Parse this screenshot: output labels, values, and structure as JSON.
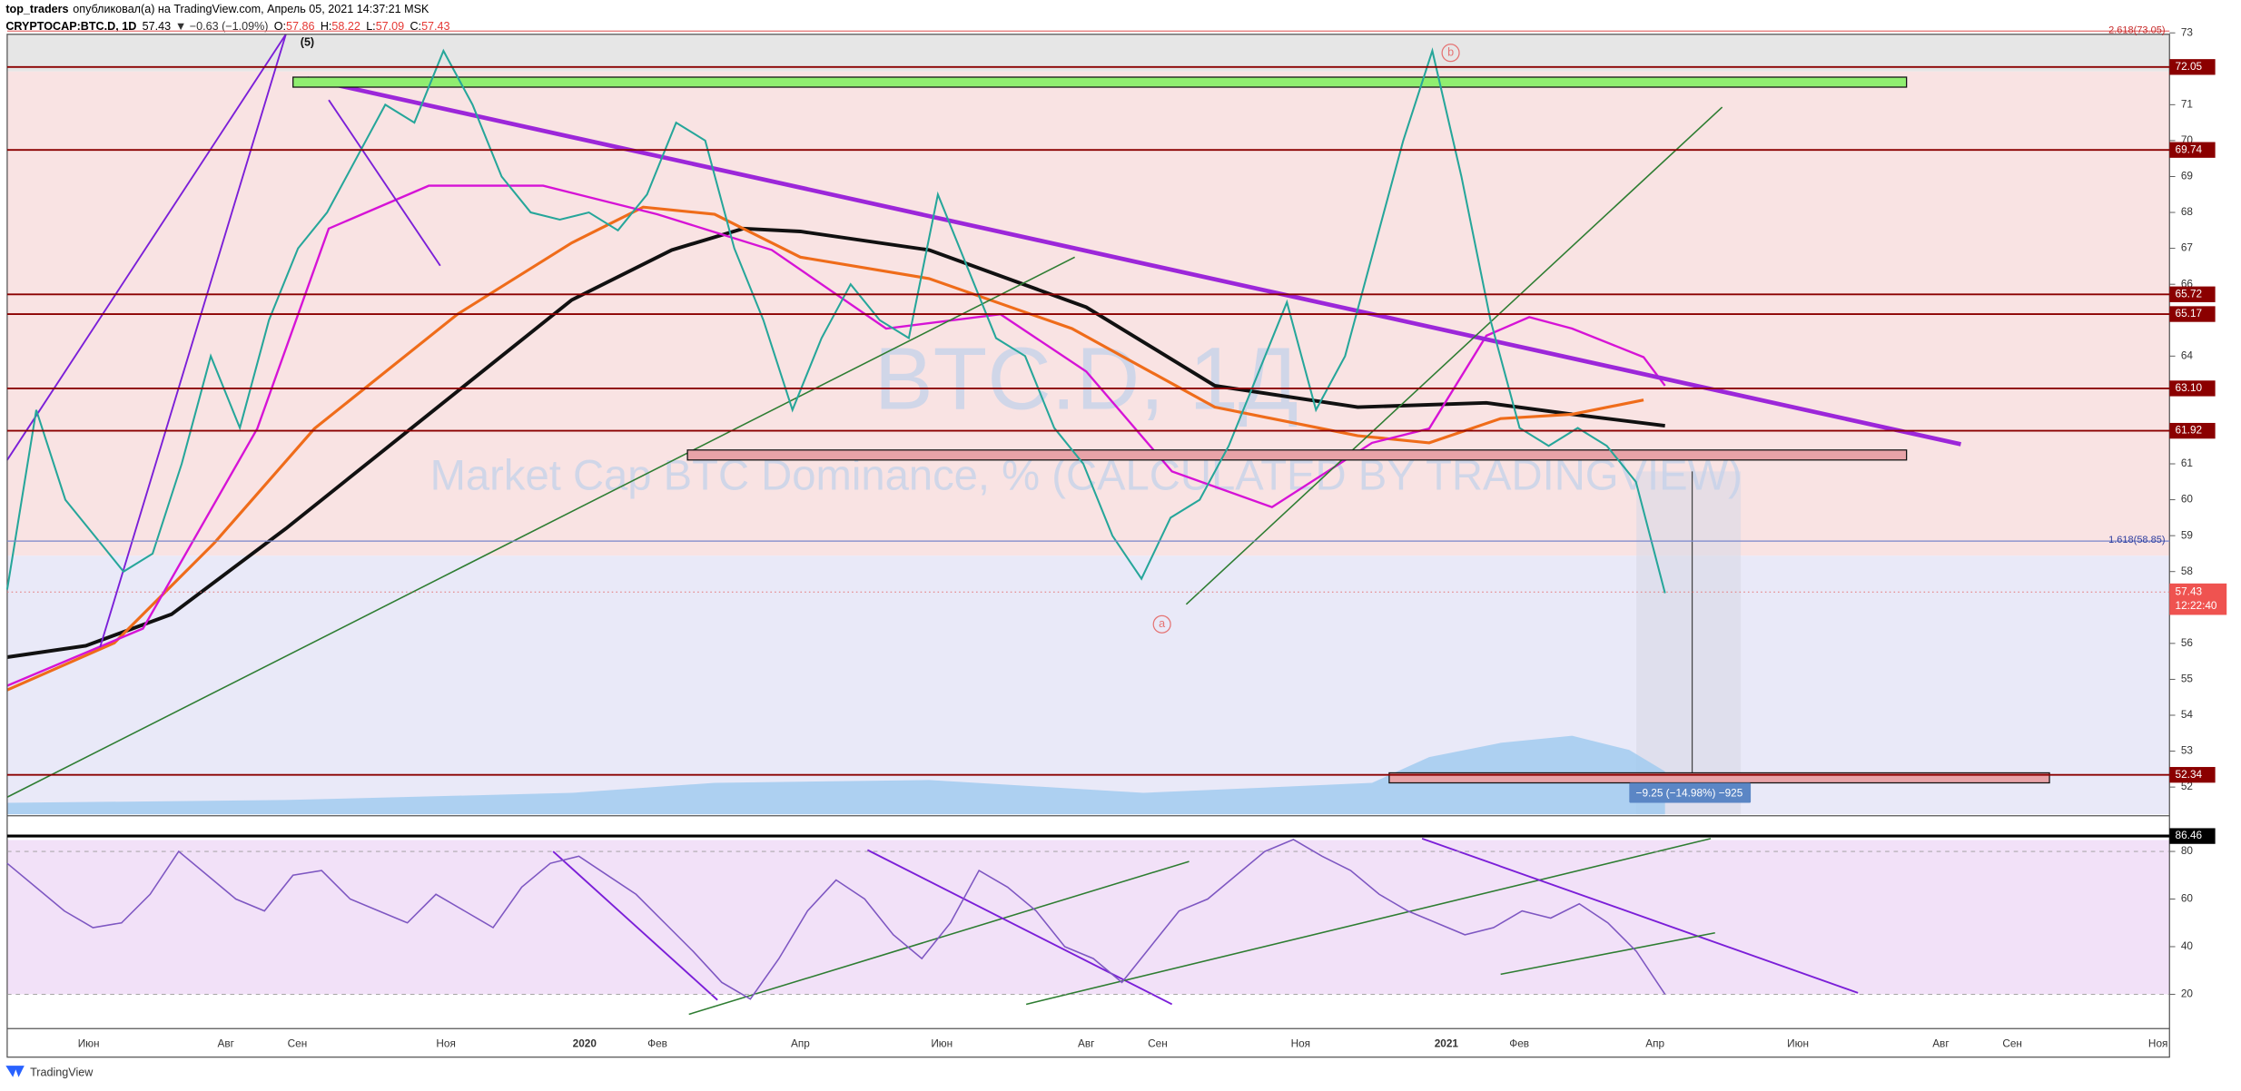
{
  "header": {
    "author": "top_traders",
    "published": "опубликовал(а) на TradingView.com, Апрель 05, 2021 14:37:21 MSK",
    "symbol": "CRYPTOCAP:BTC.D, 1D",
    "last": "57.43",
    "change": "▼ −0.63 (−1.09%)",
    "ohlc": [
      {
        "label": "O:",
        "value": "57.86"
      },
      {
        "label": "H:",
        "value": "58.22"
      },
      {
        "label": "L:",
        "value": "57.09"
      },
      {
        "label": "C:",
        "value": "57.43"
      }
    ]
  },
  "watermark": {
    "symbol": "BTC.D, 1Д",
    "description": "Market Cap BTC Dominance, % (CALCULATED BY TRADINGVIEW)"
  },
  "price_axis": {
    "ticks": [
      73,
      71,
      70,
      69,
      68,
      67,
      66,
      64,
      61,
      60,
      59,
      58,
      56,
      55,
      54,
      53,
      52
    ]
  },
  "levels": [
    72.05,
    69.74,
    65.72,
    65.17,
    {
      "value": 63.1,
      "label": "63.10"
    },
    61.92,
    52.34
  ],
  "current_price": {
    "value": 57.43,
    "countdown": "12:22:40"
  },
  "fib": [
    {
      "value": 73.05,
      "label": "2.618(73.05)"
    },
    {
      "value": 58.85,
      "label": "1.618(58.85)"
    }
  ],
  "measure": "−9.25 (−14.98%) −925",
  "wave_labels": [
    "(5)",
    "b",
    "a"
  ],
  "price_path": [
    57.5,
    62.5,
    60,
    59,
    58,
    58.5,
    61,
    64,
    62,
    65,
    67,
    68,
    69.5,
    71,
    70.5,
    72.5,
    71,
    69,
    68,
    67.8,
    68,
    67.5,
    68.5,
    70.5,
    70,
    67,
    65,
    62.5,
    64.5,
    66,
    65,
    64.5,
    68.5,
    66.5,
    64.5,
    64,
    62,
    61,
    59,
    57.8,
    59.5,
    60,
    61.5,
    63.5,
    65.5,
    62.5,
    64,
    67,
    70,
    72.5,
    69,
    65,
    62,
    61.5,
    62,
    61.5,
    60.5,
    57.4
  ],
  "rsi": {
    "ticks": [
      80,
      60,
      40,
      20
    ],
    "level": 86.46,
    "values": [
      75,
      65,
      55,
      48,
      50,
      62,
      80,
      70,
      60,
      55,
      70,
      72,
      60,
      55,
      50,
      62,
      55,
      48,
      65,
      75,
      78,
      70,
      62,
      50,
      38,
      25,
      18,
      35,
      55,
      68,
      60,
      45,
      35,
      50,
      72,
      65,
      55,
      40,
      35,
      25,
      40,
      55,
      60,
      70,
      80,
      85,
      78,
      72,
      62,
      55,
      50,
      45,
      48,
      55,
      52,
      58,
      50,
      38,
      20
    ]
  },
  "time_axis": [
    "Июн",
    "Авг",
    "Сен",
    "Ноя",
    "2020",
    "Фев",
    "Апр",
    "Июн",
    "Авг",
    "Сен",
    "Ноя",
    "2021",
    "Фев",
    "Апр",
    "Июн",
    "Авг",
    "Сен",
    "Ноя"
  ],
  "footer": "TradingView"
}
